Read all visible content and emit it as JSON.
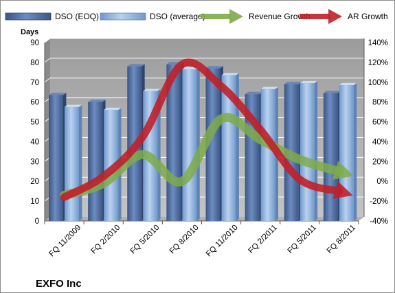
{
  "chart_data": {
    "type": "bar",
    "title": "EXFO Inc",
    "ylabel": "Days",
    "categories": [
      "FQ 11/2009",
      "FQ 2/2010",
      "FQ 5/2010",
      "FQ 8/2010",
      "FQ 11/2010",
      "FQ 2/2011",
      "FQ 5/2011",
      "FQ 8/2011"
    ],
    "series": [
      {
        "name": "DSO (EOQ)",
        "kind": "bar",
        "axis": "left",
        "color": "#4f6da0",
        "values": [
          63.5,
          60,
          78,
          79,
          77,
          64,
          69,
          64.5
        ]
      },
      {
        "name": "DSO (average)",
        "kind": "bar",
        "axis": "left",
        "color": "#8fb4e3",
        "values": [
          57.5,
          56,
          65.5,
          76.5,
          73.5,
          66.5,
          69.5,
          68.5
        ]
      },
      {
        "name": "Revenue Growth",
        "kind": "line",
        "axis": "right",
        "color": "#7fab4a",
        "values": [
          -14,
          -2,
          27,
          0,
          63,
          42,
          22,
          10
        ]
      },
      {
        "name": "AR Growth",
        "kind": "line",
        "axis": "right",
        "color": "#c0202a",
        "values": [
          -16,
          5,
          45,
          118,
          96,
          52,
          2,
          -10
        ]
      }
    ],
    "ylim": [
      0,
      90
    ],
    "yticks": [
      "0",
      "10",
      "20",
      "30",
      "40",
      "50",
      "60",
      "70",
      "80",
      "90"
    ],
    "y2lim": [
      -40,
      140
    ],
    "y2ticks": [
      "-40%",
      "-20%",
      "0%",
      "20%",
      "40%",
      "60%",
      "80%",
      "100%",
      "120%",
      "140%"
    ],
    "grid": true,
    "legend": "top"
  }
}
